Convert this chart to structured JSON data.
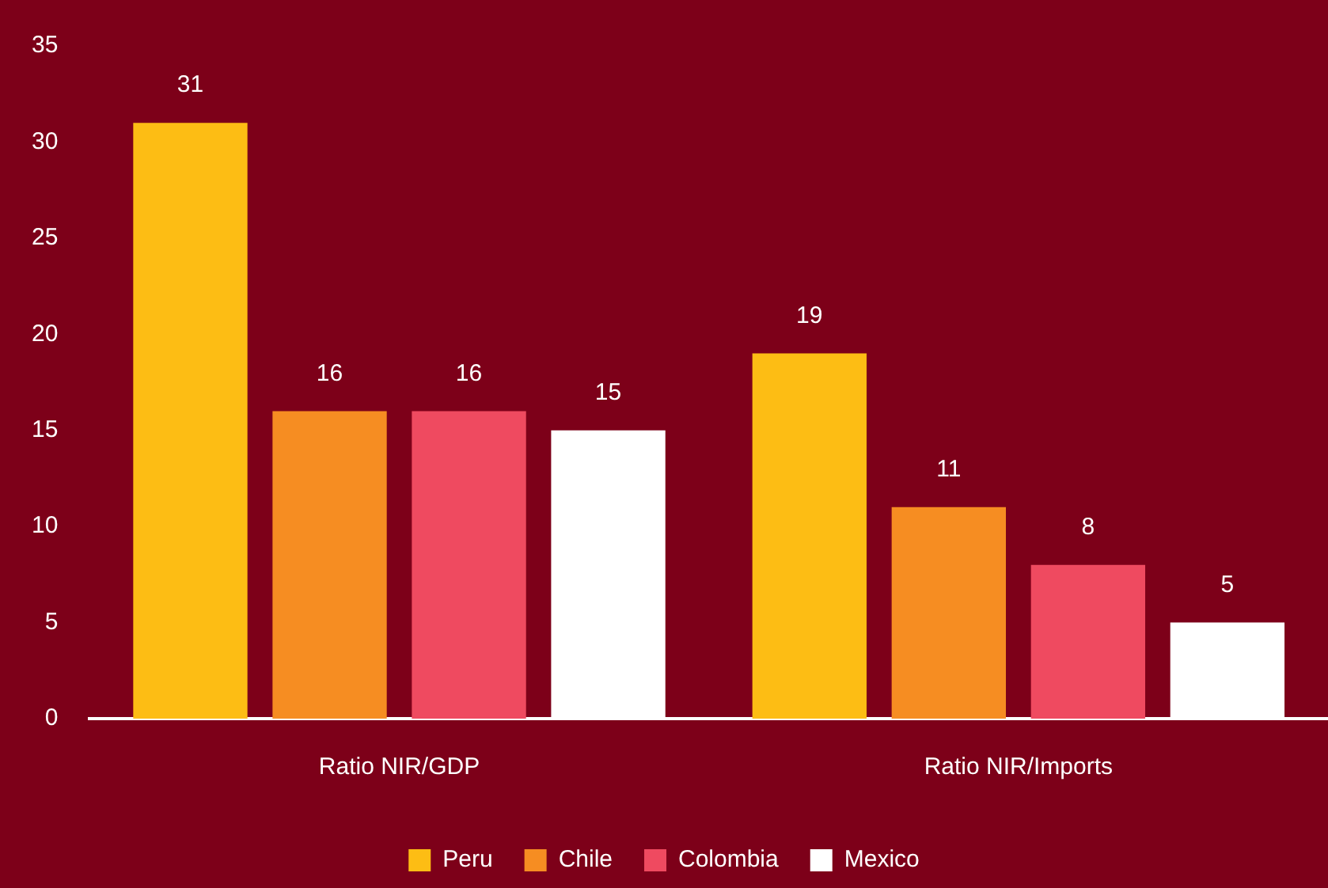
{
  "chart_data": {
    "type": "bar",
    "categories": [
      "Ratio NIR/GDP",
      "Ratio NIR/Imports"
    ],
    "series": [
      {
        "name": "Peru",
        "color": "#fdbd14",
        "values": [
          31,
          19
        ]
      },
      {
        "name": "Chile",
        "color": "#f68d22",
        "values": [
          16,
          11
        ]
      },
      {
        "name": "Colombia",
        "color": "#ef4a60",
        "values": [
          16,
          8
        ]
      },
      {
        "name": "Mexico",
        "color": "#ffffff",
        "values": [
          15,
          5
        ]
      }
    ],
    "ylim": [
      0,
      35
    ],
    "yticks": [
      0,
      5,
      10,
      15,
      20,
      25,
      30,
      35
    ],
    "grid": false,
    "legend": "bottom",
    "data_labels": true
  }
}
